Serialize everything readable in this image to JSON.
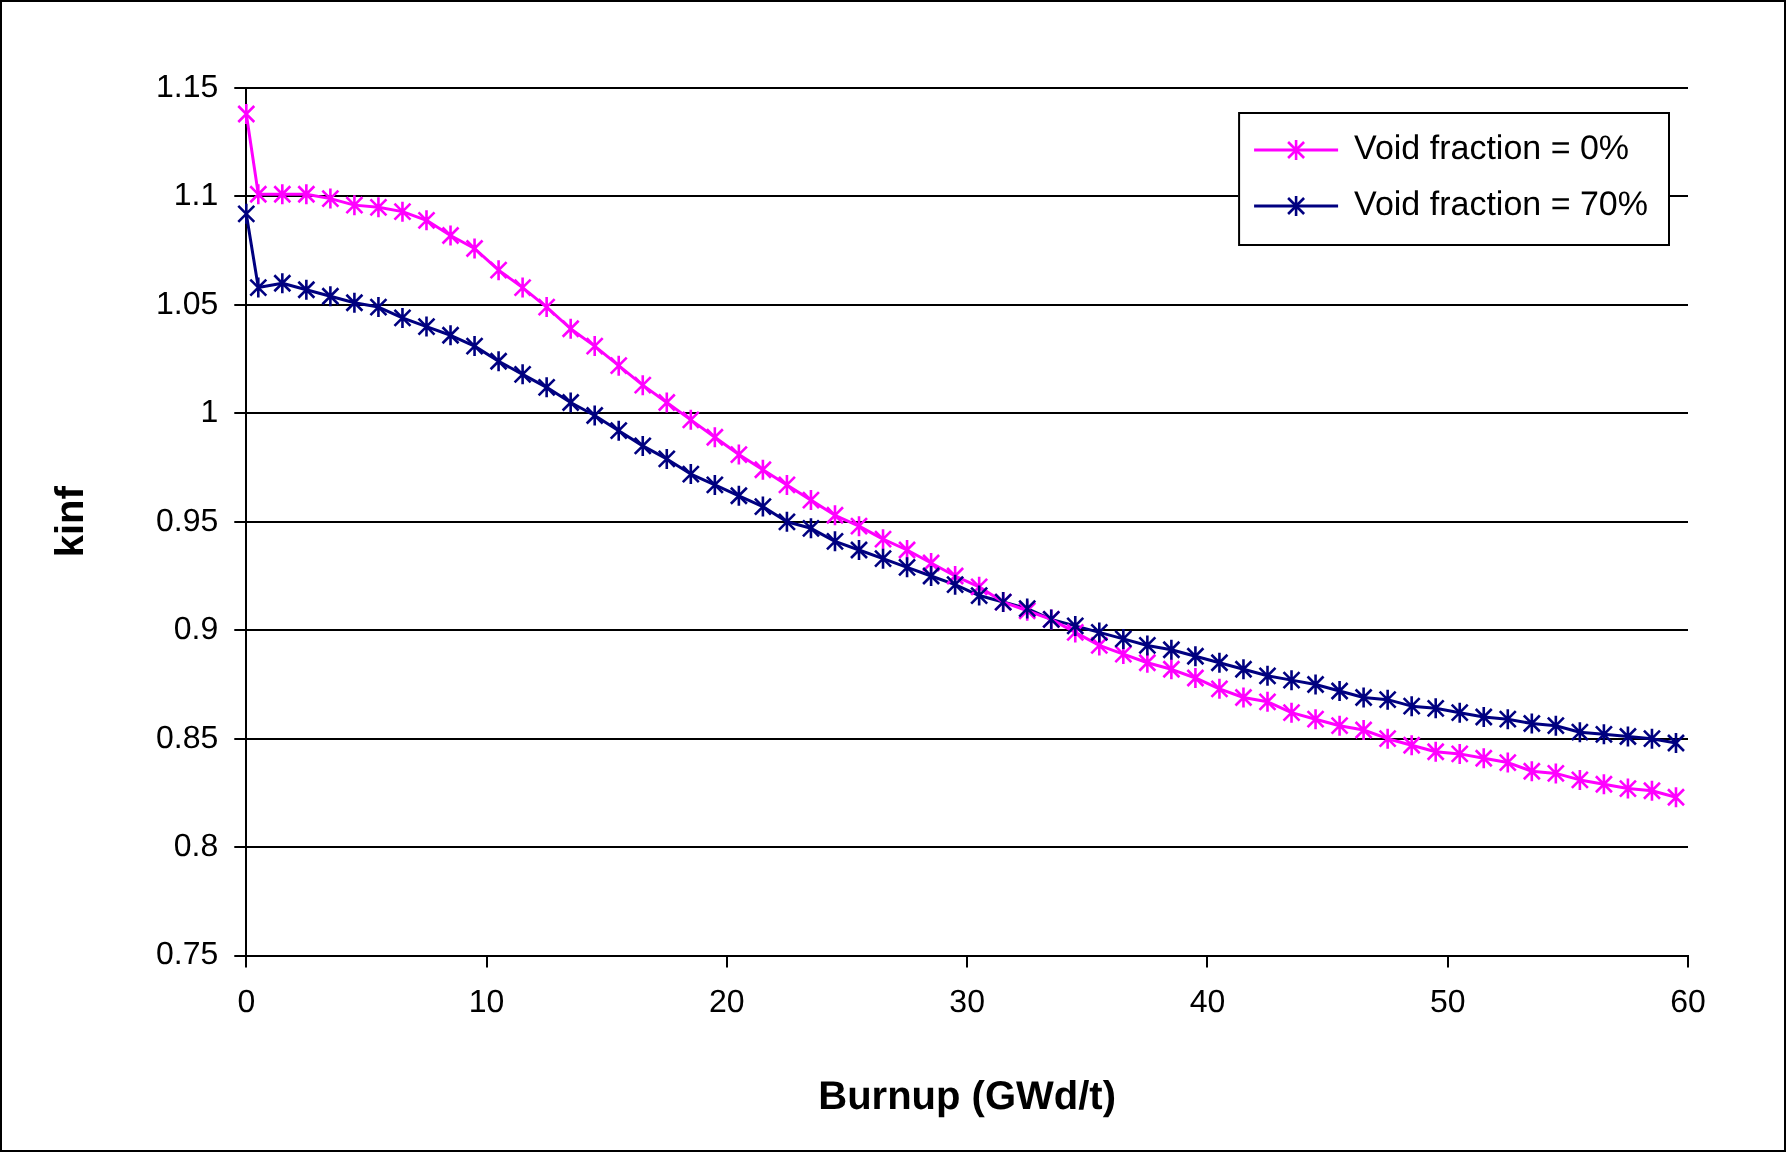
{
  "chart_data": {
    "type": "line",
    "xlabel": "Burnup (GWd/t)",
    "ylabel": "kinf",
    "x": [
      0,
      0.5,
      1.5,
      2.5,
      3.5,
      4.5,
      5.5,
      6.5,
      7.5,
      8.5,
      9.5,
      10.5,
      11.5,
      12.5,
      13.5,
      14.5,
      15.5,
      16.5,
      17.5,
      18.5,
      19.5,
      20.5,
      21.5,
      22.5,
      23.5,
      24.5,
      25.5,
      26.5,
      27.5,
      28.5,
      29.5,
      30.5,
      31.5,
      32.5,
      33.5,
      34.5,
      35.5,
      36.5,
      37.5,
      38.5,
      39.5,
      40.5,
      41.5,
      42.5,
      43.5,
      44.5,
      45.5,
      46.5,
      47.5,
      48.5,
      49.5,
      50.5,
      51.5,
      52.5,
      53.5,
      54.5,
      55.5,
      56.5,
      57.5,
      58.5,
      59.5
    ],
    "series": [
      {
        "name": "Void fraction = 0%",
        "color": "#ff00ff",
        "values": [
          1.138,
          1.101,
          1.101,
          1.101,
          1.099,
          1.096,
          1.095,
          1.093,
          1.089,
          1.082,
          1.076,
          1.066,
          1.058,
          1.049,
          1.039,
          1.031,
          1.022,
          1.013,
          1.005,
          0.997,
          0.989,
          0.981,
          0.974,
          0.967,
          0.96,
          0.953,
          0.948,
          0.942,
          0.937,
          0.931,
          0.925,
          0.92,
          0.913,
          0.909,
          0.905,
          0.899,
          0.893,
          0.889,
          0.885,
          0.882,
          0.878,
          0.873,
          0.869,
          0.867,
          0.862,
          0.859,
          0.856,
          0.854,
          0.85,
          0.847,
          0.844,
          0.843,
          0.841,
          0.839,
          0.835,
          0.834,
          0.831,
          0.829,
          0.827,
          0.826,
          0.823
        ]
      },
      {
        "name": "Void fraction = 70%",
        "color": "#000080",
        "values": [
          1.092,
          1.058,
          1.06,
          1.057,
          1.054,
          1.051,
          1.049,
          1.044,
          1.04,
          1.036,
          1.031,
          1.024,
          1.018,
          1.012,
          1.005,
          0.999,
          0.992,
          0.985,
          0.979,
          0.972,
          0.967,
          0.962,
          0.957,
          0.95,
          0.947,
          0.941,
          0.937,
          0.933,
          0.929,
          0.925,
          0.921,
          0.916,
          0.913,
          0.91,
          0.905,
          0.902,
          0.899,
          0.896,
          0.893,
          0.891,
          0.888,
          0.885,
          0.882,
          0.879,
          0.877,
          0.875,
          0.872,
          0.869,
          0.868,
          0.865,
          0.864,
          0.862,
          0.86,
          0.859,
          0.857,
          0.856,
          0.853,
          0.852,
          0.851,
          0.85,
          0.848
        ]
      }
    ],
    "xlim": [
      0,
      60
    ],
    "xticks": [
      0,
      10,
      20,
      30,
      40,
      50,
      60
    ],
    "ylim": [
      0.75,
      1.15
    ],
    "yticks": [
      0.75,
      0.8,
      0.85,
      0.9,
      0.95,
      1,
      1.05,
      1.1,
      1.15
    ],
    "grid": "y",
    "legend": "top right",
    "marker": "cross",
    "line_style": "solid"
  }
}
